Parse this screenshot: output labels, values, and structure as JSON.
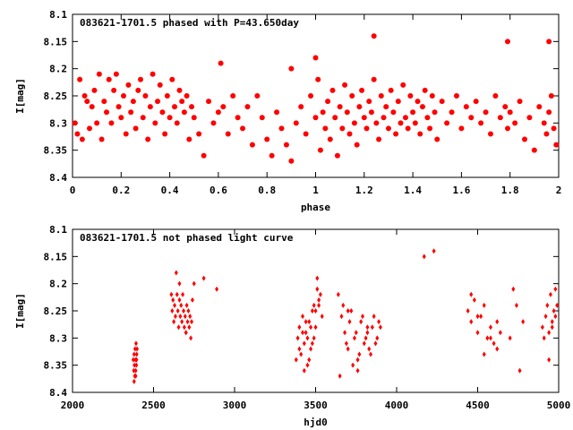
{
  "chart_data": [
    {
      "type": "scatter",
      "title": "083621-1701.5 phased with P=43.650day",
      "xlabel": "phase",
      "ylabel": "I[mag]",
      "xlim": [
        0,
        2
      ],
      "ylim": [
        8.1,
        8.4
      ],
      "y_inverted": true,
      "marker": "filled-circle",
      "color": "#ff0000",
      "xticks": [
        0,
        0.2,
        0.4,
        0.6,
        0.8,
        1,
        1.2,
        1.4,
        1.6,
        1.8,
        2
      ],
      "xtick_labels": [
        "0",
        "0.2",
        "0.4",
        "0.6",
        "0.8",
        "1",
        "1.2",
        "1.4",
        "1.6",
        "1.8",
        "2"
      ],
      "yticks": [
        8.1,
        8.15,
        8.2,
        8.25,
        8.3,
        8.35,
        8.4
      ],
      "ytick_labels": [
        "8.1",
        "8.15",
        "8.2",
        "8.25",
        "8.3",
        "8.35",
        "8.4"
      ],
      "x": [
        0.01,
        0.02,
        0.03,
        0.04,
        0.05,
        0.06,
        0.07,
        0.08,
        0.09,
        0.1,
        0.11,
        0.12,
        0.13,
        0.14,
        0.15,
        0.16,
        0.17,
        0.18,
        0.19,
        0.2,
        0.21,
        0.22,
        0.23,
        0.24,
        0.25,
        0.26,
        0.27,
        0.28,
        0.29,
        0.3,
        0.31,
        0.32,
        0.33,
        0.34,
        0.35,
        0.36,
        0.37,
        0.38,
        0.39,
        0.4,
        0.41,
        0.42,
        0.43,
        0.44,
        0.45,
        0.46,
        0.47,
        0.48,
        0.49,
        0.5,
        0.52,
        0.54,
        0.56,
        0.58,
        0.6,
        0.62,
        0.64,
        0.66,
        0.68,
        0.7,
        0.72,
        0.74,
        0.76,
        0.78,
        0.8,
        0.82,
        0.84,
        0.86,
        0.88,
        0.9,
        0.92,
        0.94,
        0.96,
        0.98,
        1.0,
        1.01,
        1.02,
        1.03,
        1.04,
        1.05,
        1.06,
        1.07,
        1.08,
        1.09,
        1.1,
        1.11,
        1.12,
        1.13,
        1.14,
        1.15,
        1.16,
        1.17,
        1.18,
        1.19,
        1.2,
        1.21,
        1.22,
        1.23,
        1.24,
        1.25,
        1.26,
        1.27,
        1.28,
        1.29,
        1.3,
        1.31,
        1.32,
        1.33,
        1.34,
        1.35,
        1.36,
        1.37,
        1.38,
        1.39,
        1.4,
        1.41,
        1.42,
        1.43,
        1.44,
        1.45,
        1.46,
        1.47,
        1.48,
        1.49,
        1.5,
        1.52,
        1.54,
        1.56,
        1.58,
        1.6,
        1.62,
        1.64,
        1.66,
        1.68,
        1.7,
        1.72,
        1.74,
        1.76,
        1.78,
        1.79,
        1.8,
        1.82,
        1.84,
        1.86,
        1.88,
        1.9,
        1.92,
        1.94,
        1.95,
        1.96,
        1.97,
        1.98,
        1.99,
        0.61,
        0.9,
        1.0,
        1.24,
        1.79,
        1.96
      ],
      "y": [
        8.3,
        8.32,
        8.22,
        8.33,
        8.25,
        8.26,
        8.31,
        8.27,
        8.24,
        8.3,
        8.21,
        8.33,
        8.26,
        8.28,
        8.22,
        8.3,
        8.24,
        8.21,
        8.27,
        8.29,
        8.25,
        8.32,
        8.23,
        8.28,
        8.26,
        8.31,
        8.24,
        8.22,
        8.29,
        8.25,
        8.33,
        8.27,
        8.21,
        8.3,
        8.26,
        8.23,
        8.28,
        8.32,
        8.25,
        8.29,
        8.22,
        8.27,
        8.3,
        8.24,
        8.26,
        8.28,
        8.25,
        8.33,
        8.27,
        8.29,
        8.32,
        8.36,
        8.26,
        8.3,
        8.28,
        8.27,
        8.32,
        8.25,
        8.29,
        8.31,
        8.27,
        8.34,
        8.25,
        8.29,
        8.33,
        8.36,
        8.28,
        8.31,
        8.34,
        8.37,
        8.3,
        8.27,
        8.32,
        8.25,
        8.29,
        8.22,
        8.35,
        8.28,
        8.31,
        8.26,
        8.33,
        8.24,
        8.29,
        8.36,
        8.27,
        8.31,
        8.23,
        8.28,
        8.32,
        8.25,
        8.3,
        8.34,
        8.27,
        8.24,
        8.29,
        8.31,
        8.26,
        8.28,
        8.22,
        8.3,
        8.33,
        8.25,
        8.29,
        8.27,
        8.31,
        8.24,
        8.28,
        8.32,
        8.26,
        8.3,
        8.23,
        8.29,
        8.31,
        8.25,
        8.28,
        8.3,
        8.26,
        8.32,
        8.27,
        8.24,
        8.29,
        8.31,
        8.25,
        8.28,
        8.33,
        8.26,
        8.3,
        8.28,
        8.25,
        8.31,
        8.27,
        8.29,
        8.26,
        8.3,
        8.28,
        8.32,
        8.25,
        8.29,
        8.27,
        8.31,
        8.28,
        8.3,
        8.26,
        8.33,
        8.29,
        8.35,
        8.27,
        8.3,
        8.32,
        8.28,
        8.25,
        8.31,
        8.34,
        8.19,
        8.2,
        8.18,
        8.14,
        8.15,
        8.15
      ],
      "jitter_note": ""
    },
    {
      "type": "scatter",
      "title": "083621-1701.5 not phased light curve",
      "xlabel": "hjd0",
      "ylabel": "I[mag]",
      "xlim": [
        2000,
        5000
      ],
      "ylim": [
        8.1,
        8.4
      ],
      "y_inverted": true,
      "marker": "diamond",
      "color": "#ff0000",
      "xticks": [
        2000,
        2500,
        3000,
        3500,
        4000,
        4500,
        5000
      ],
      "xtick_labels": [
        "2000",
        "2500",
        "3000",
        "3500",
        "4000",
        "4500",
        "5000"
      ],
      "yticks": [
        8.1,
        8.15,
        8.2,
        8.25,
        8.3,
        8.35,
        8.4
      ],
      "ytick_labels": [
        "8.1",
        "8.15",
        "8.2",
        "8.25",
        "8.3",
        "8.35",
        "8.4"
      ],
      "x": [
        2375,
        2378,
        2380,
        2382,
        2384,
        2386,
        2388,
        2390,
        2392,
        2394,
        2396,
        2398,
        2380,
        2390,
        2395,
        2610,
        2615,
        2620,
        2625,
        2630,
        2635,
        2640,
        2645,
        2650,
        2655,
        2660,
        2665,
        2670,
        2675,
        2680,
        2685,
        2690,
        2695,
        2700,
        2705,
        2710,
        2715,
        2720,
        2725,
        2730,
        2735,
        2740,
        2660,
        2700,
        2750,
        2810,
        2890,
        3380,
        3390,
        3400,
        3410,
        3420,
        3430,
        3440,
        3450,
        3460,
        3470,
        3480,
        3490,
        3500,
        3510,
        3520,
        3530,
        3540,
        3400,
        3420,
        3440,
        3460,
        3480,
        3500,
        3520,
        3430,
        3450,
        3470,
        3490,
        3510,
        3640,
        3660,
        3680,
        3700,
        3720,
        3740,
        3760,
        3780,
        3800,
        3820,
        3840,
        3860,
        3880,
        3900,
        3650,
        3670,
        3690,
        3710,
        3730,
        3750,
        3770,
        3790,
        3810,
        3830,
        3850,
        3870,
        3890,
        3700,
        3760,
        3820,
        4170,
        4230,
        4440,
        4460,
        4480,
        4500,
        4520,
        4540,
        4560,
        4580,
        4600,
        4620,
        4640,
        4460,
        4500,
        4540,
        4580,
        4620,
        4700,
        4720,
        4740,
        4760,
        4780,
        4900,
        4910,
        4920,
        4930,
        4940,
        4950,
        4960,
        4970,
        4980,
        4990,
        4940,
        4960,
        4980
      ],
      "y": [
        8.34,
        8.36,
        8.33,
        8.35,
        8.37,
        8.32,
        8.34,
        8.36,
        8.31,
        8.35,
        8.33,
        8.32,
        8.38,
        8.37,
        8.34,
        8.22,
        8.25,
        8.23,
        8.27,
        8.24,
        8.26,
        8.18,
        8.22,
        8.25,
        8.28,
        8.23,
        8.26,
        8.24,
        8.27,
        8.22,
        8.25,
        8.28,
        8.26,
        8.29,
        8.24,
        8.27,
        8.25,
        8.28,
        8.26,
        8.3,
        8.27,
        8.23,
        8.2,
        8.29,
        8.2,
        8.19,
        8.21,
        8.34,
        8.3,
        8.28,
        8.33,
        8.26,
        8.31,
        8.29,
        8.35,
        8.27,
        8.32,
        8.25,
        8.3,
        8.28,
        8.19,
        8.24,
        8.22,
        8.26,
        8.32,
        8.29,
        8.27,
        8.34,
        8.31,
        8.25,
        8.23,
        8.36,
        8.3,
        8.28,
        8.24,
        8.21,
        8.22,
        8.26,
        8.29,
        8.32,
        8.25,
        8.3,
        8.34,
        8.27,
        8.31,
        8.28,
        8.33,
        8.26,
        8.3,
        8.28,
        8.37,
        8.24,
        8.31,
        8.27,
        8.35,
        8.29,
        8.33,
        8.26,
        8.3,
        8.32,
        8.28,
        8.31,
        8.27,
        8.25,
        8.36,
        8.29,
        8.15,
        8.14,
        8.25,
        8.27,
        8.23,
        8.29,
        8.26,
        8.24,
        8.3,
        8.28,
        8.31,
        8.27,
        8.29,
        8.22,
        8.26,
        8.33,
        8.3,
        8.32,
        8.3,
        8.21,
        8.24,
        8.36,
        8.27,
        8.28,
        8.3,
        8.26,
        8.24,
        8.29,
        8.22,
        8.27,
        8.25,
        8.21,
        8.24,
        8.34,
        8.28,
        8.26
      ]
    }
  ]
}
